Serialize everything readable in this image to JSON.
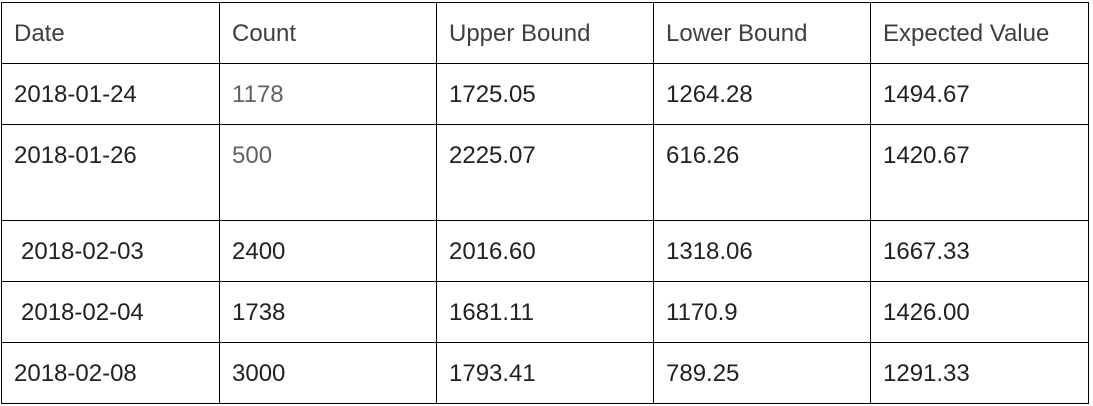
{
  "table": {
    "headers": [
      "Date",
      "Count",
      "Upper Bound",
      "Lower Bound",
      "Expected Value"
    ],
    "rows": [
      [
        "2018-01-24",
        "1178",
        "1725.05",
        "1264.28",
        "1494.67"
      ],
      [
        "2018-01-26",
        "500",
        "2225.07",
        "616.26",
        "1420.67"
      ],
      [
        "2018-02-03",
        "2400",
        "2016.60",
        "1318.06",
        "1667.33"
      ],
      [
        "2018-02-04",
        "1738",
        "1681.11",
        "1170.9",
        "1426.00"
      ],
      [
        "2018-02-08",
        "3000",
        "1793.41",
        "789.25",
        "1291.33"
      ]
    ]
  },
  "colors": {
    "border": "#000000",
    "text": "#202124",
    "header_text": "#3c4043",
    "muted_text": "#5f6368"
  }
}
